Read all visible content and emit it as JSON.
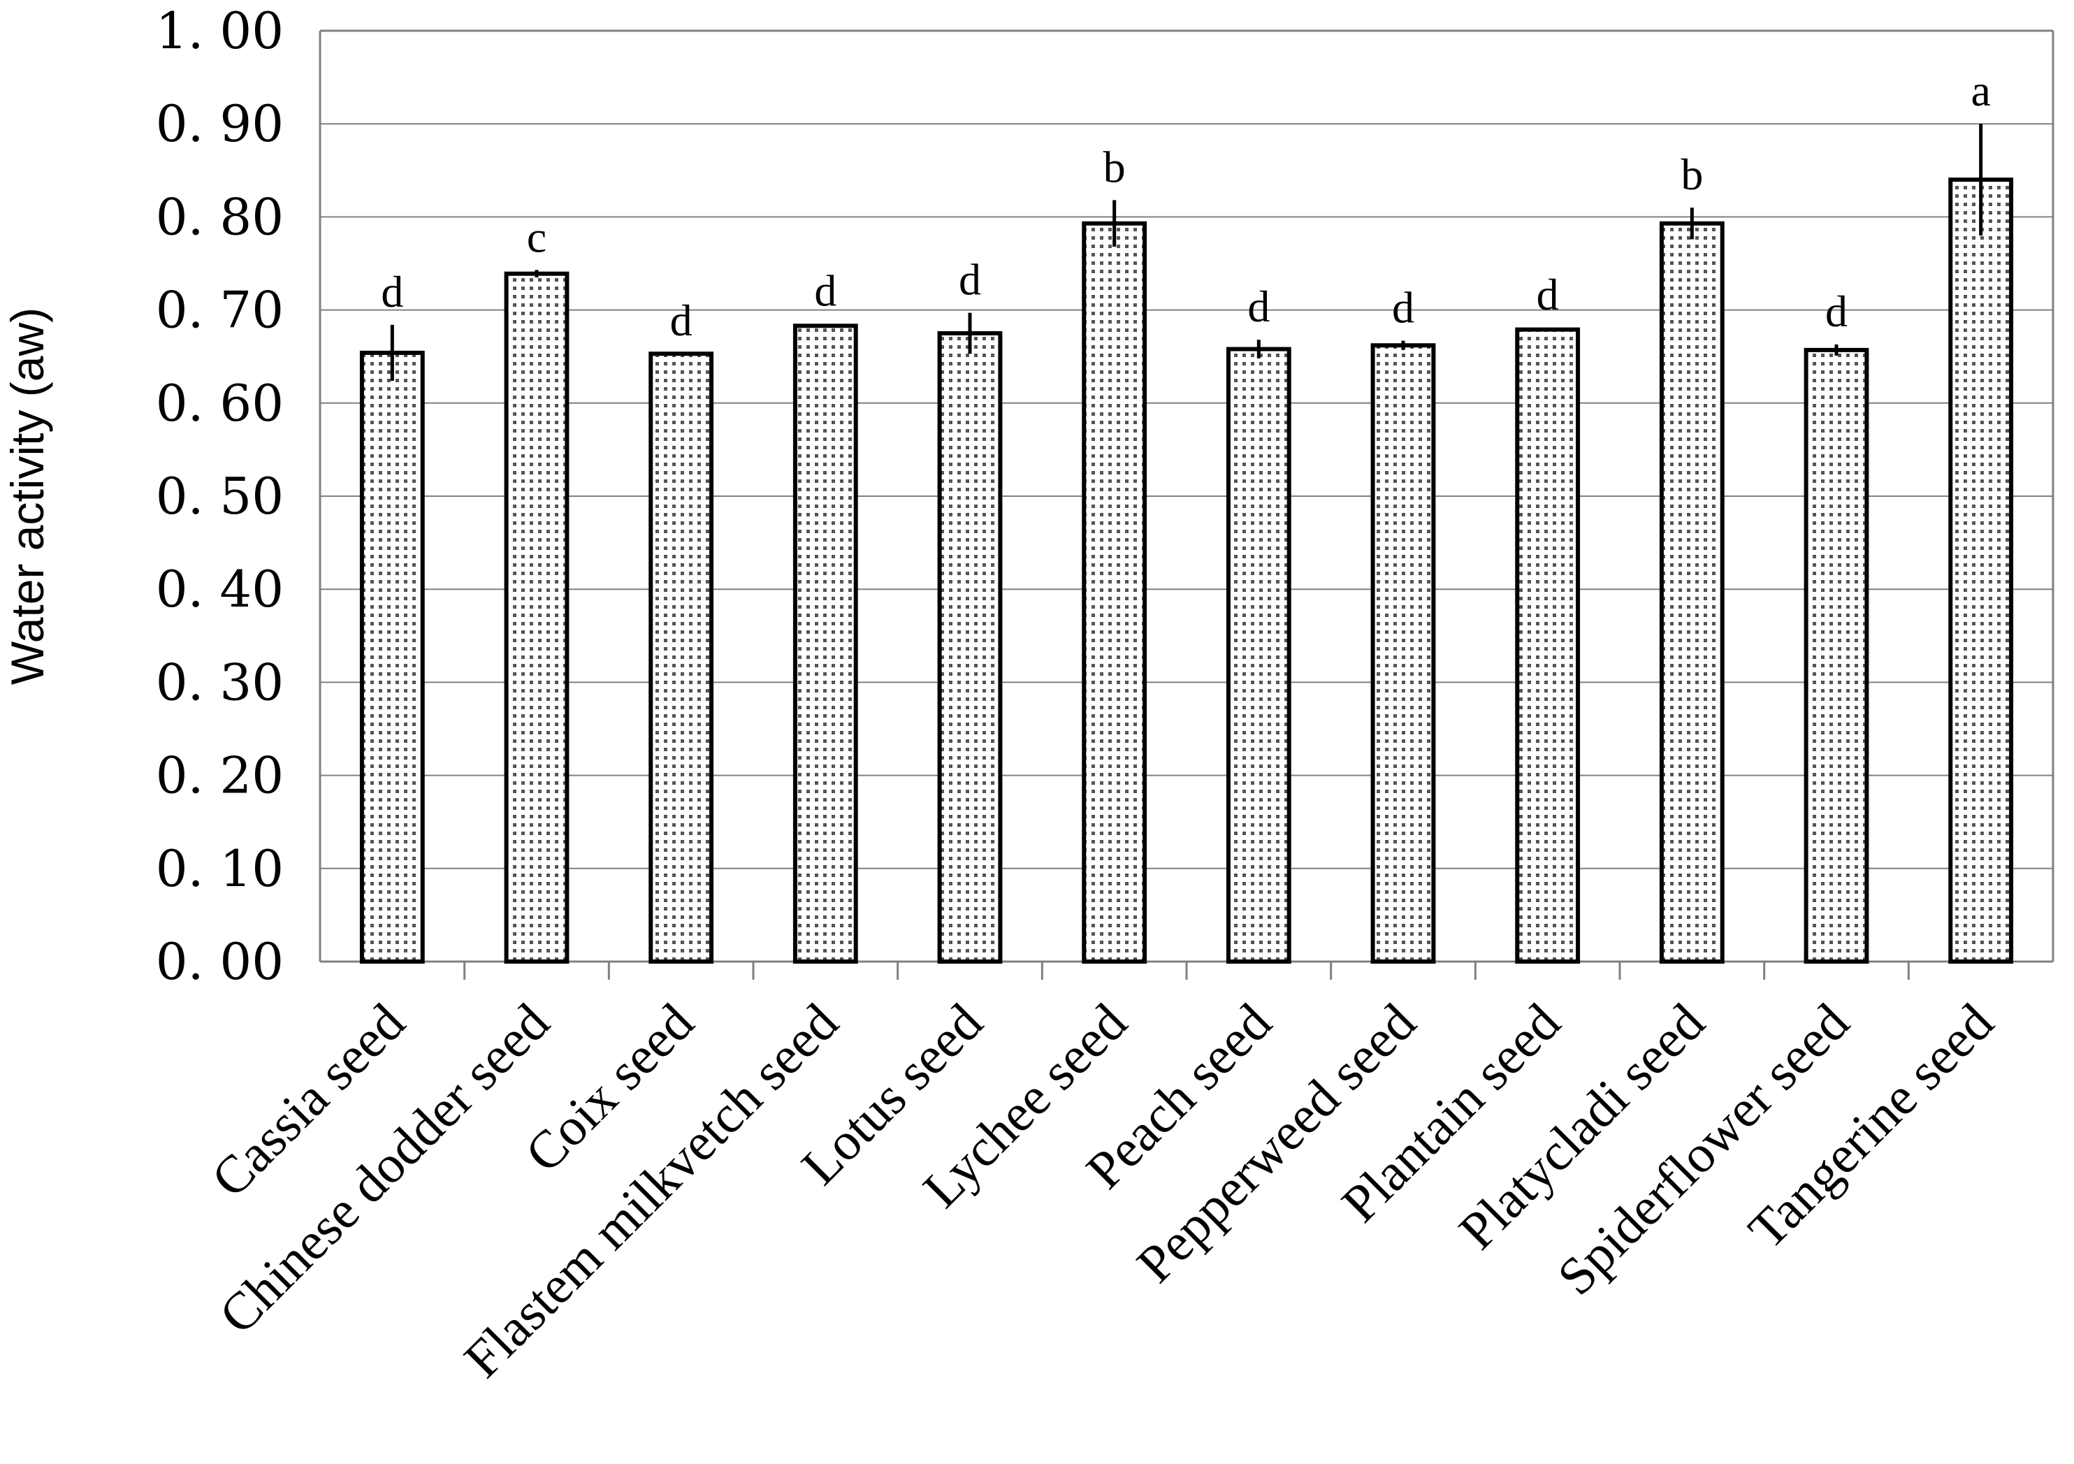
{
  "chart_data": {
    "type": "bar",
    "categories": [
      "Cassia seed",
      "Chinese dodder seed",
      "Coix seed",
      "Flastem milkvetch seed",
      "Lotus seed",
      "Lychee seed",
      "Peach seed",
      "Pepperweed seed",
      "Plantain seed",
      "Platycladi seed",
      "Spiderflower seed",
      "Tangerine seed"
    ],
    "values": [
      0.654,
      0.739,
      0.653,
      0.683,
      0.675,
      0.793,
      0.658,
      0.662,
      0.679,
      0.793,
      0.657,
      0.84
    ],
    "errors": [
      0.03,
      0.004,
      0.0,
      0.002,
      0.022,
      0.025,
      0.01,
      0.005,
      0.002,
      0.017,
      0.006,
      0.06
    ],
    "significance": [
      "d",
      "c",
      "d",
      "d",
      "d",
      "b",
      "d",
      "d",
      "d",
      "b",
      "d",
      "a"
    ],
    "ylabel": "Water activity (aw)",
    "xlabel": "",
    "title": "",
    "ylim": [
      0,
      1.0
    ],
    "yticks": [
      "0. 00",
      "0. 10",
      "0. 20",
      "0. 30",
      "0. 40",
      "0. 50",
      "0. 60",
      "0. 70",
      "0. 80",
      "0. 90",
      "1. 00"
    ],
    "grid": true,
    "legend": "none",
    "bar_fill": "dotted-gray",
    "colors": {
      "bar_edge": "#000000",
      "grid": "#808080",
      "dots": "#555555"
    }
  }
}
